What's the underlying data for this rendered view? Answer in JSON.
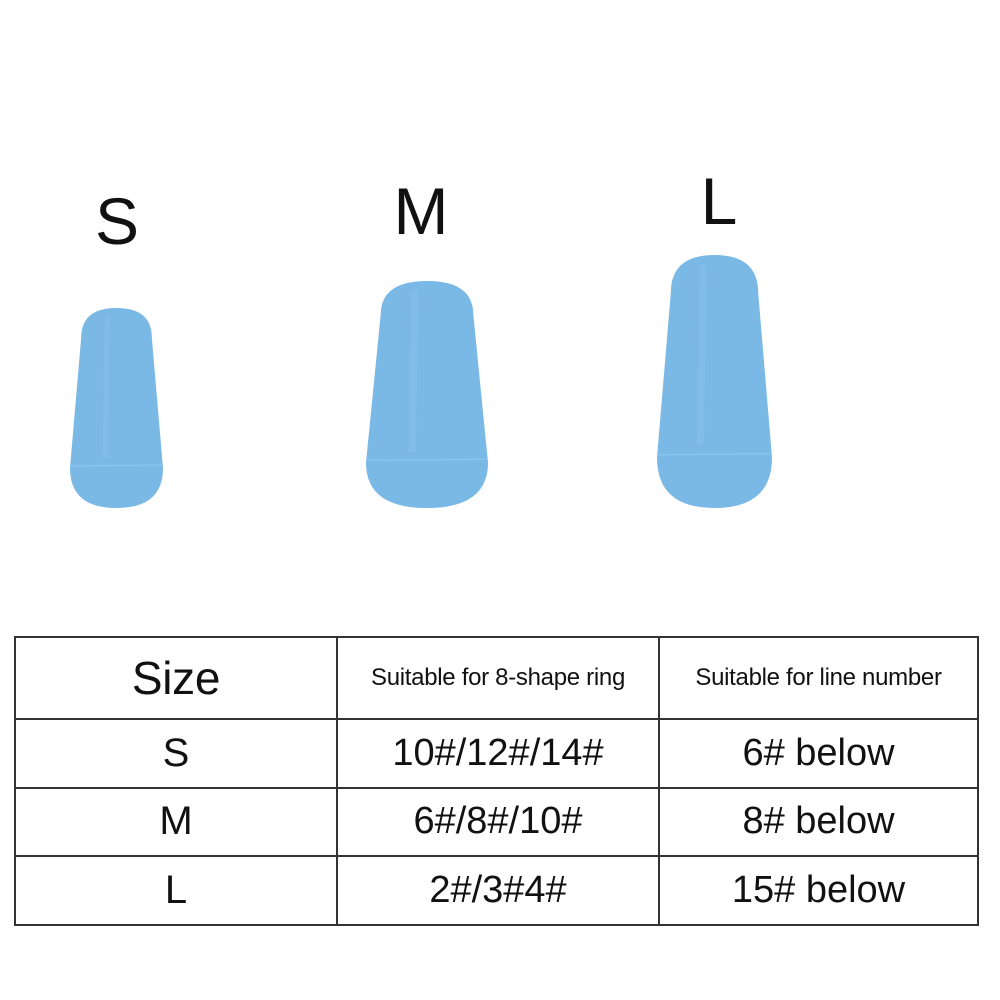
{
  "sizes": [
    {
      "label": "S",
      "color": "#7ab8e6"
    },
    {
      "label": "M",
      "color": "#7ab8e6"
    },
    {
      "label": "L",
      "color": "#7ab8e6"
    }
  ],
  "table": {
    "headers": [
      "Size",
      "Suitable for 8-shape ring",
      "Suitable for line number"
    ],
    "rows": [
      [
        "S",
        "10#/12#/14#",
        "6# below"
      ],
      [
        "M",
        "6#/8#/10#",
        "8# below"
      ],
      [
        "L",
        "2#/3#4#",
        "15# below"
      ]
    ]
  }
}
